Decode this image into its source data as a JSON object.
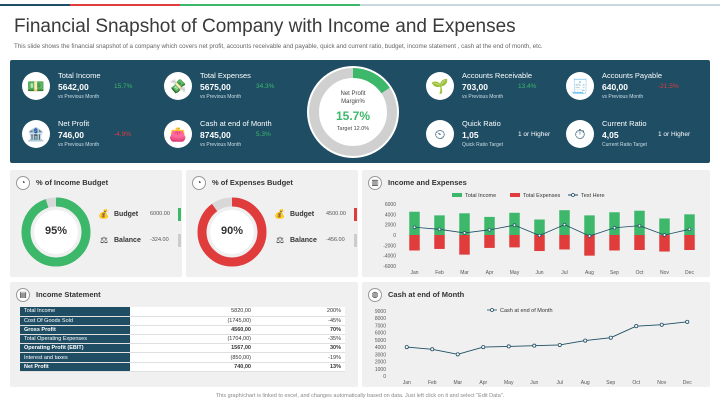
{
  "header": {
    "title": "Financial Snapshot of Company with Income and Expenses",
    "subtitle": "This slide shows the financial snapshot of a company which covers net profit, accounts receivable and payable, quick and current ratio, budget, income statement , cash at the end of month, etc."
  },
  "colors": {
    "navy": "#1e4d64",
    "green": "#3db86b",
    "red": "#e03c3c"
  },
  "kpis": {
    "total_income": {
      "icon": "money-icon",
      "label": "Total Income",
      "value": "5642,00",
      "pct": "15.7%",
      "sub": "vs Previous Month"
    },
    "total_expenses": {
      "icon": "cash-icon",
      "label": "Total Expenses",
      "value": "5675,00",
      "pct": "34.3%",
      "sub": "vs Previous Month"
    },
    "net_profit": {
      "icon": "bank-icon",
      "label": "Net Profit",
      "value": "746,00",
      "pct": "-4.9%",
      "sub": "vs Previous Month"
    },
    "cash_end": {
      "icon": "wallet-icon",
      "label": "Cash at end of Month",
      "value": "8745,00",
      "pct": "5.3%",
      "sub": "vs Previous Month"
    },
    "acc_receivable": {
      "icon": "growth-icon",
      "label": "Accounts Receivable",
      "value": "703,00",
      "pct": "13.4%",
      "sub": "vs Previous Month"
    },
    "acc_payable": {
      "icon": "bill-icon",
      "label": "Accounts Payable",
      "value": "640,00",
      "pct": "-21.5%",
      "sub": "vs Previous Month"
    },
    "quick_ratio": {
      "icon": "speedometer-icon",
      "label": "Quick Ratio",
      "value": "1,05",
      "right": "1 or Higher",
      "sub": "Quick Ratio Target"
    },
    "current_ratio": {
      "icon": "dial-icon",
      "label": "Current Ratio",
      "value": "4,05",
      "right": "1 or Higher",
      "sub": "Current Ratio Target"
    }
  },
  "net_margin": {
    "label_line1": "Net Profit",
    "label_line2": "Margin%",
    "value": "15.7%",
    "target": "Target 12.0%",
    "fraction": 0.157
  },
  "income_budget": {
    "title": "% of Income Budget",
    "value": "95%",
    "fraction": 0.95,
    "budget_label": "Budget",
    "budget_value": "6000.00",
    "balance_label": "Balance",
    "balance_value": "-324.00"
  },
  "expenses_budget": {
    "title": "% of Expenses Budget",
    "value": "90%",
    "fraction": 0.9,
    "budget_label": "Budget",
    "budget_value": "4500.00",
    "balance_label": "Balance",
    "balance_value": "-456.00"
  },
  "income_statement": {
    "title": "Income Statement",
    "rows": [
      {
        "name": "Total Income",
        "value": "5820,00",
        "pct": "200%",
        "bold": false
      },
      {
        "name": "Cost Of Goods Sold",
        "value": "(1745,00)",
        "pct": "-45%",
        "bold": false
      },
      {
        "name": "Gross Profit",
        "value": "4560,00",
        "pct": "70%",
        "bold": true
      },
      {
        "name": "Total Operating Expenses",
        "value": "(1704,00)",
        "pct": "-35%",
        "bold": false
      },
      {
        "name": "Operating Profit (EBIT)",
        "value": "1567,00",
        "pct": "30%",
        "bold": true
      },
      {
        "name": "Interest and taxes",
        "value": "(850,00)",
        "pct": "-19%",
        "bold": false
      },
      {
        "name": "Net Profit",
        "value": "740,00",
        "pct": "13%",
        "bold": true
      }
    ]
  },
  "chart_data": [
    {
      "type": "bar",
      "title": "Income and Expenses",
      "categories": [
        "Jan",
        "Feb",
        "Mar",
        "Apr",
        "May",
        "Jun",
        "Jul",
        "Aug",
        "Sep",
        "Oct",
        "Nov",
        "Dec"
      ],
      "series": [
        {
          "name": "Total Income",
          "values": [
            4500,
            3800,
            4200,
            3500,
            4300,
            3000,
            4800,
            3800,
            4400,
            4700,
            3200,
            4000
          ]
        },
        {
          "name": "Total Expenses",
          "values": [
            -3000,
            -2700,
            -3800,
            -2500,
            -2400,
            -3100,
            -2800,
            -4000,
            -3000,
            -2900,
            -3200,
            -2900
          ]
        },
        {
          "name": "Text Here",
          "values": [
            1500,
            1100,
            400,
            1000,
            1900,
            -100,
            2000,
            -200,
            1400,
            1800,
            0,
            1100
          ]
        }
      ],
      "yticks": [
        "6000",
        "4000",
        "2000",
        "0",
        "-2000",
        "-4000",
        "-6000"
      ],
      "ylim": [
        -6000,
        6000
      ]
    },
    {
      "type": "line",
      "title": "Cash at end of Month",
      "categories": [
        "Jan",
        "Feb",
        "Mar",
        "Apr",
        "May",
        "Jun",
        "Jul",
        "Aug",
        "Sep",
        "Oct",
        "Nov",
        "Dec"
      ],
      "series": [
        {
          "name": "Cash at end of Month",
          "values": [
            4000,
            3700,
            3000,
            4000,
            4100,
            4200,
            4300,
            4900,
            5300,
            6900,
            7100,
            7500
          ]
        }
      ],
      "yticks": [
        "9000",
        "8000",
        "7000",
        "6000",
        "5000",
        "4000",
        "3000",
        "2000",
        "1000",
        "0"
      ],
      "ylim": [
        0,
        9000
      ]
    }
  ],
  "footer": "This graph/chart is linked to excel, and changes automatically based on data. Just left click on it and select \"Edit Data\"."
}
